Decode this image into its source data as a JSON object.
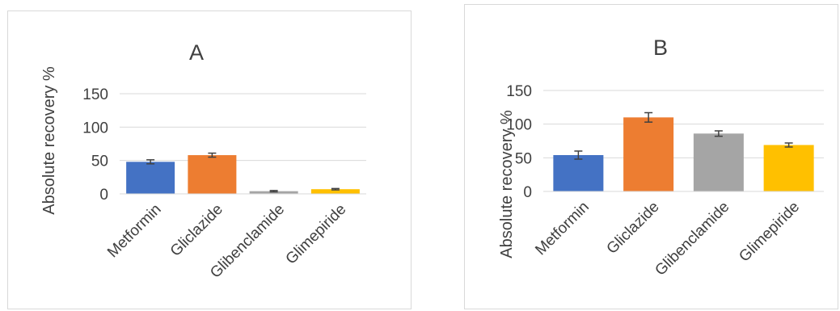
{
  "chart_data": [
    {
      "type": "bar",
      "title": "A",
      "ylabel": "Absolute recovery %",
      "xlabel": "",
      "categories": [
        "Metformin",
        "Gliclazide",
        "Glibenclamide",
        "Glimepiride"
      ],
      "values": [
        48,
        58,
        4,
        7
      ],
      "errors": [
        3,
        3,
        1,
        1
      ],
      "colors": [
        "#4472c4",
        "#ed7d31",
        "#a5a5a5",
        "#ffc000"
      ],
      "ylim": [
        0,
        150
      ],
      "yticks": [
        "0",
        "50",
        "100",
        "150"
      ],
      "grid": true,
      "legend": "none"
    },
    {
      "type": "bar",
      "title": "B",
      "ylabel": "Absolute recovery %",
      "xlabel": "",
      "categories": [
        "Metformin",
        "Gliclazide",
        "Glibenclamide",
        "Glimepiride"
      ],
      "values": [
        54,
        110,
        86,
        69
      ],
      "errors": [
        6,
        7,
        4,
        3
      ],
      "colors": [
        "#4472c4",
        "#ed7d31",
        "#a5a5a5",
        "#ffc000"
      ],
      "ylim": [
        0,
        150
      ],
      "yticks": [
        "0",
        "50",
        "100",
        "150"
      ],
      "grid": true,
      "legend": "none"
    }
  ]
}
